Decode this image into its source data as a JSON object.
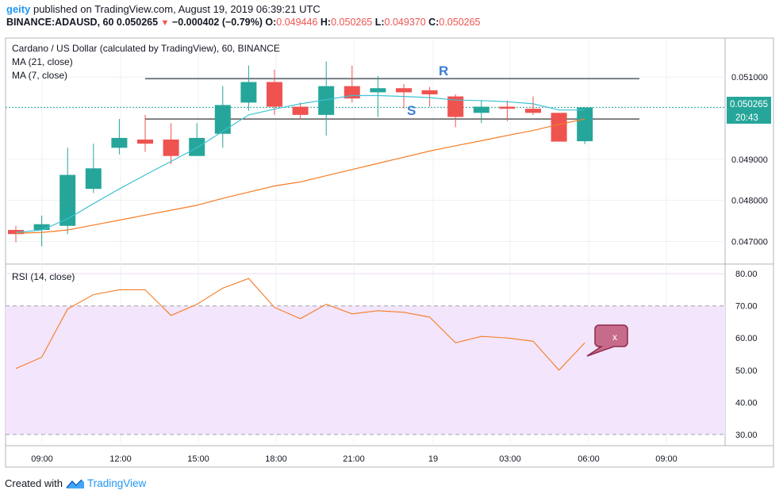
{
  "header": {
    "user": "geity",
    "published_text": "published on TradingView.com, August 19, 2019 06:39:21 UTC",
    "symbol": "BINANCE:ADAUSD, 60",
    "last": "0.050265",
    "change": "−0.000402 (−0.79%)",
    "o_label": "O:",
    "o_value": "0.049446",
    "h_label": "H:",
    "h_value": "0.050265",
    "l_label": "L:",
    "l_value": "0.049370",
    "c_label": "C:",
    "c_value": "0.050265"
  },
  "legend": {
    "title": "Cardano / US Dollar (calculated by TradingView), 60, BINANCE",
    "ma1": "MA (21, close)",
    "ma2": "MA (7, close)",
    "rsi": "RSI (14, close)"
  },
  "annotations": {
    "resistance": "R",
    "support": "S",
    "bubble": "x"
  },
  "price_badge": {
    "price": "0.050265",
    "countdown": "20:43"
  },
  "footer": {
    "created": "Created with",
    "brand": "TradingView"
  },
  "colors": {
    "up": "#26a69a",
    "down": "#ef5350",
    "ma_fast": "#3fc1d4",
    "ma_slow": "#f57c24",
    "rsi": "#f57c24",
    "rsi_band": "#f3e5fb",
    "accent": "#2196f3",
    "bubble": "#c76b8a"
  },
  "chart_data": [
    {
      "type": "candlestick",
      "title": "Cardano / US Dollar (calculated by TradingView), 60, BINANCE",
      "x_ticks": [
        "09:00",
        "12:00",
        "15:00",
        "18:00",
        "21:00",
        "19",
        "03:00",
        "06:00",
        "09:00"
      ],
      "y_ticks": [
        "0.047000",
        "0.048000",
        "0.049000",
        "0.051000"
      ],
      "ylim": [
        0.04645,
        0.05195
      ],
      "candles": [
        {
          "o": 0.04728,
          "h": 0.04738,
          "l": 0.04698,
          "c": 0.04718
        },
        {
          "o": 0.04728,
          "h": 0.04763,
          "l": 0.04688,
          "c": 0.04742
        },
        {
          "o": 0.04738,
          "h": 0.04928,
          "l": 0.04718,
          "c": 0.04862
        },
        {
          "o": 0.04828,
          "h": 0.04938,
          "l": 0.04818,
          "c": 0.04878
        },
        {
          "o": 0.04928,
          "h": 0.04998,
          "l": 0.04912,
          "c": 0.04952
        },
        {
          "o": 0.04948,
          "h": 0.05008,
          "l": 0.04918,
          "c": 0.04938
        },
        {
          "o": 0.04948,
          "h": 0.04988,
          "l": 0.04888,
          "c": 0.04908
        },
        {
          "o": 0.04908,
          "h": 0.04988,
          "l": 0.04908,
          "c": 0.04952
        },
        {
          "o": 0.04962,
          "h": 0.05078,
          "l": 0.04928,
          "c": 0.05032
        },
        {
          "o": 0.05038,
          "h": 0.05128,
          "l": 0.05018,
          "c": 0.05088
        },
        {
          "o": 0.05088,
          "h": 0.05118,
          "l": 0.05008,
          "c": 0.05028
        },
        {
          "o": 0.05028,
          "h": 0.05038,
          "l": 0.04998,
          "c": 0.05008
        },
        {
          "o": 0.05008,
          "h": 0.05138,
          "l": 0.04958,
          "c": 0.05078
        },
        {
          "o": 0.05078,
          "h": 0.05128,
          "l": 0.05038,
          "c": 0.05048
        },
        {
          "o": 0.05063,
          "h": 0.05103,
          "l": 0.05003,
          "c": 0.05073
        },
        {
          "o": 0.05073,
          "h": 0.05083,
          "l": 0.05023,
          "c": 0.05063
        },
        {
          "o": 0.05068,
          "h": 0.05076,
          "l": 0.05028,
          "c": 0.05058
        },
        {
          "o": 0.05053,
          "h": 0.05058,
          "l": 0.04978,
          "c": 0.05003
        },
        {
          "o": 0.05013,
          "h": 0.05043,
          "l": 0.04988,
          "c": 0.05028
        },
        {
          "o": 0.05028,
          "h": 0.05043,
          "l": 0.04993,
          "c": 0.05023
        },
        {
          "o": 0.05023,
          "h": 0.05053,
          "l": 0.05008,
          "c": 0.05013
        },
        {
          "o": 0.05013,
          "h": 0.05013,
          "l": 0.04943,
          "c": 0.04943
        },
        {
          "o": 0.04944,
          "h": 0.05026,
          "l": 0.04937,
          "c": 0.05026
        }
      ],
      "ma_fast": [
        0.04722,
        0.04728,
        0.04755,
        0.04792,
        0.04828,
        0.04862,
        0.04895,
        0.04928,
        0.04968,
        0.05008,
        0.05022,
        0.05035,
        0.05045,
        0.05055,
        0.05055,
        0.05053,
        0.0505,
        0.05044,
        0.05043,
        0.0504,
        0.05035,
        0.0502,
        0.0502
      ],
      "ma_slow": [
        0.0472,
        0.04722,
        0.04728,
        0.0474,
        0.04752,
        0.04764,
        0.04776,
        0.04788,
        0.04805,
        0.0482,
        0.04835,
        0.04845,
        0.0486,
        0.04875,
        0.0489,
        0.04905,
        0.0492,
        0.04933,
        0.04945,
        0.04958,
        0.0497,
        0.04985,
        0.04998
      ],
      "resistance": 0.05096,
      "support": 0.04998,
      "last_price": 0.050265
    },
    {
      "type": "line",
      "title": "RSI (14, close)",
      "y_ticks": [
        "30.00",
        "40.00",
        "50.00",
        "60.00",
        "70.00",
        "80.00"
      ],
      "ylim": [
        26.5,
        83.0
      ],
      "band": [
        30,
        70
      ],
      "values": [
        50.5,
        54.0,
        69.0,
        73.5,
        75.0,
        75.0,
        67.0,
        70.5,
        75.5,
        78.5,
        69.5,
        66.0,
        70.5,
        67.5,
        68.5,
        68.0,
        66.5,
        58.5,
        60.5,
        60.0,
        59.0,
        50.0,
        58.5
      ]
    }
  ]
}
